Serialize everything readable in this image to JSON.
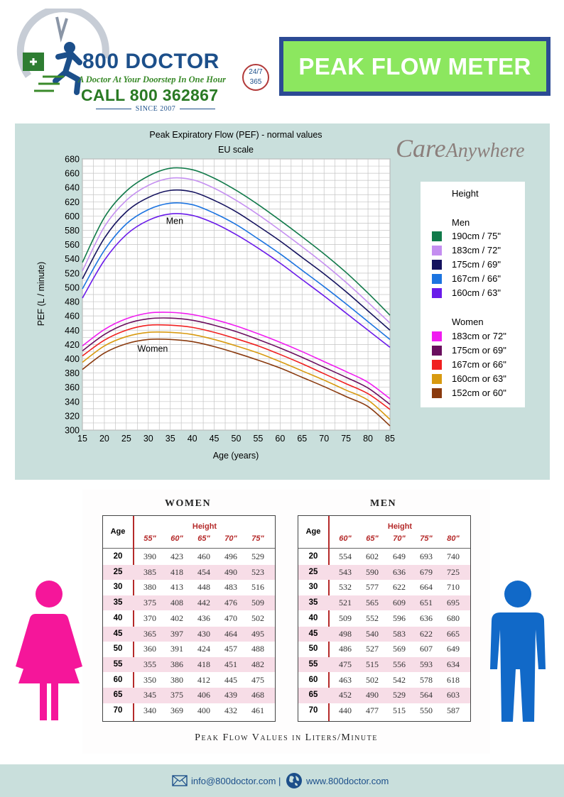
{
  "header": {
    "brand_name": "800 DOCTOR",
    "tagline": "A Doctor At Your Doorstep In One Hour",
    "call": "CALL 800 362867",
    "since": "SINCE 2007",
    "badge_top": "24/7",
    "badge_bottom": "365",
    "page_title": "PEAK FLOW METER"
  },
  "watermark": {
    "care": "Care",
    "anywhere": "Anywhere"
  },
  "chart_data": {
    "type": "line",
    "title": "Peak Expiratory Flow (PEF) - normal values",
    "subtitle": "EU scale",
    "xlabel": "Age (years)",
    "ylabel": "PEF (L / minute)",
    "xlim": [
      15,
      85
    ],
    "ylim": [
      300,
      680
    ],
    "xticks": [
      15,
      20,
      25,
      30,
      35,
      40,
      45,
      50,
      55,
      60,
      65,
      70,
      75,
      80,
      85
    ],
    "yticks": [
      300,
      320,
      340,
      360,
      380,
      400,
      420,
      440,
      460,
      480,
      500,
      520,
      540,
      560,
      580,
      600,
      620,
      640,
      660,
      680
    ],
    "grid": true,
    "legend_position": "right",
    "annotations": [
      {
        "text": "Men",
        "x": 36,
        "y": 593
      },
      {
        "text": "Women",
        "x": 31,
        "y": 414
      }
    ],
    "legend": {
      "title": "Height",
      "groups": [
        {
          "name": "Men",
          "entries": [
            "190cm / 75\"",
            "183cm / 72\"",
            "175cm / 69\"",
            "167cm / 66\"",
            "160cm / 63\""
          ]
        },
        {
          "name": "Women",
          "entries": [
            "183cm or 72\"",
            "175cm or 69\"",
            "167cm or 66\"",
            "160cm or 63\"",
            "152cm or 60\""
          ]
        }
      ]
    },
    "series": [
      {
        "name": "190cm / 75\"",
        "color": "#117a4a",
        "x": [
          15,
          20,
          25,
          30,
          35,
          40,
          45,
          50,
          55,
          60,
          65,
          70,
          75,
          80,
          85
        ],
        "y": [
          535,
          598,
          635,
          656,
          667,
          665,
          653,
          636,
          616,
          594,
          571,
          547,
          521,
          492,
          461
        ]
      },
      {
        "name": "183cm / 72\"",
        "color": "#c48ef0",
        "x": [
          15,
          20,
          25,
          30,
          35,
          40,
          45,
          50,
          55,
          60,
          65,
          70,
          75,
          80,
          85
        ],
        "y": [
          523,
          585,
          622,
          643,
          653,
          651,
          639,
          622,
          602,
          580,
          557,
          533,
          507,
          479,
          450
        ]
      },
      {
        "name": "175cm / 69\"",
        "color": "#14125e",
        "x": [
          15,
          20,
          25,
          30,
          35,
          40,
          45,
          50,
          55,
          60,
          65,
          70,
          75,
          80,
          85
        ],
        "y": [
          512,
          569,
          606,
          626,
          636,
          634,
          622,
          606,
          586,
          565,
          542,
          519,
          494,
          467,
          440
        ]
      },
      {
        "name": "167cm / 66\"",
        "color": "#1c74e0",
        "x": [
          15,
          20,
          25,
          30,
          35,
          40,
          45,
          50,
          55,
          60,
          65,
          70,
          75,
          80,
          85
        ],
        "y": [
          498,
          552,
          589,
          609,
          618,
          616,
          604,
          588,
          568,
          547,
          524,
          501,
          477,
          452,
          427
        ]
      },
      {
        "name": "160cm / 63\"",
        "color": "#6a1bea",
        "x": [
          15,
          20,
          25,
          30,
          35,
          40,
          45,
          50,
          55,
          60,
          65,
          70,
          75,
          80,
          85
        ],
        "y": [
          485,
          538,
          574,
          594,
          603,
          601,
          590,
          574,
          555,
          534,
          511,
          488,
          464,
          440,
          416
        ]
      },
      {
        "name": "183cm or 72\"",
        "color": "#f01cf0",
        "x": [
          15,
          20,
          25,
          30,
          35,
          40,
          45,
          50,
          55,
          60,
          65,
          70,
          75,
          80,
          85
        ],
        "y": [
          418,
          441,
          456,
          464,
          465,
          462,
          455,
          446,
          435,
          423,
          410,
          396,
          382,
          367,
          344
        ]
      },
      {
        "name": "175cm or 69\"",
        "color": "#6a0e5e",
        "x": [
          15,
          20,
          25,
          30,
          35,
          40,
          45,
          50,
          55,
          60,
          65,
          70,
          75,
          80,
          85
        ],
        "y": [
          411,
          434,
          449,
          456,
          457,
          454,
          447,
          438,
          427,
          415,
          402,
          388,
          374,
          359,
          336
        ]
      },
      {
        "name": "167cm or 66\"",
        "color": "#f02020",
        "x": [
          15,
          20,
          25,
          30,
          35,
          40,
          45,
          50,
          55,
          60,
          65,
          70,
          75,
          80,
          85
        ],
        "y": [
          404,
          426,
          440,
          447,
          447,
          444,
          437,
          428,
          418,
          406,
          393,
          379,
          365,
          351,
          329
        ]
      },
      {
        "name": "160cm or 63\"",
        "color": "#d89a10",
        "x": [
          15,
          20,
          25,
          30,
          35,
          40,
          45,
          50,
          55,
          60,
          65,
          70,
          75,
          80,
          85
        ],
        "y": [
          395,
          418,
          431,
          437,
          437,
          434,
          427,
          418,
          408,
          396,
          383,
          370,
          356,
          342,
          315
        ]
      },
      {
        "name": "152cm or 60\"",
        "color": "#8a3a0e",
        "x": [
          15,
          20,
          25,
          30,
          35,
          40,
          45,
          50,
          55,
          60,
          65,
          70,
          75,
          80,
          85
        ],
        "y": [
          385,
          408,
          421,
          427,
          427,
          424,
          417,
          408,
          398,
          387,
          374,
          361,
          347,
          333,
          306
        ]
      }
    ]
  },
  "tables": {
    "women": {
      "title": "WOMEN",
      "age_header": "Age",
      "height_header": "Height",
      "heights": [
        "55\"",
        "60\"",
        "65\"",
        "70\"",
        "75\""
      ],
      "rows": [
        {
          "age": "20",
          "values": [
            "390",
            "423",
            "460",
            "496",
            "529"
          ]
        },
        {
          "age": "25",
          "values": [
            "385",
            "418",
            "454",
            "490",
            "523"
          ]
        },
        {
          "age": "30",
          "values": [
            "380",
            "413",
            "448",
            "483",
            "516"
          ]
        },
        {
          "age": "35",
          "values": [
            "375",
            "408",
            "442",
            "476",
            "509"
          ]
        },
        {
          "age": "40",
          "values": [
            "370",
            "402",
            "436",
            "470",
            "502"
          ]
        },
        {
          "age": "45",
          "values": [
            "365",
            "397",
            "430",
            "464",
            "495"
          ]
        },
        {
          "age": "50",
          "values": [
            "360",
            "391",
            "424",
            "457",
            "488"
          ]
        },
        {
          "age": "55",
          "values": [
            "355",
            "386",
            "418",
            "451",
            "482"
          ]
        },
        {
          "age": "60",
          "values": [
            "350",
            "380",
            "412",
            "445",
            "475"
          ]
        },
        {
          "age": "65",
          "values": [
            "345",
            "375",
            "406",
            "439",
            "468"
          ]
        },
        {
          "age": "70",
          "values": [
            "340",
            "369",
            "400",
            "432",
            "461"
          ]
        }
      ]
    },
    "men": {
      "title": "MEN",
      "age_header": "Age",
      "height_header": "Height",
      "heights": [
        "60\"",
        "65\"",
        "70\"",
        "75\"",
        "80\""
      ],
      "rows": [
        {
          "age": "20",
          "values": [
            "554",
            "602",
            "649",
            "693",
            "740"
          ]
        },
        {
          "age": "25",
          "values": [
            "543",
            "590",
            "636",
            "679",
            "725"
          ]
        },
        {
          "age": "30",
          "values": [
            "532",
            "577",
            "622",
            "664",
            "710"
          ]
        },
        {
          "age": "35",
          "values": [
            "521",
            "565",
            "609",
            "651",
            "695"
          ]
        },
        {
          "age": "40",
          "values": [
            "509",
            "552",
            "596",
            "636",
            "680"
          ]
        },
        {
          "age": "45",
          "values": [
            "498",
            "540",
            "583",
            "622",
            "665"
          ]
        },
        {
          "age": "50",
          "values": [
            "486",
            "527",
            "569",
            "607",
            "649"
          ]
        },
        {
          "age": "55",
          "values": [
            "475",
            "515",
            "556",
            "593",
            "634"
          ]
        },
        {
          "age": "60",
          "values": [
            "463",
            "502",
            "542",
            "578",
            "618"
          ]
        },
        {
          "age": "65",
          "values": [
            "452",
            "490",
            "529",
            "564",
            "603"
          ]
        },
        {
          "age": "70",
          "values": [
            "440",
            "477",
            "515",
            "550",
            "587"
          ]
        }
      ]
    },
    "caption": "Peak Flow Values in Liters/Minute"
  },
  "figures": {
    "woman_color": "#f5169a",
    "man_color": "#1169c8"
  },
  "footer": {
    "email": "info@800doctor.com",
    "separator": "|",
    "website": "www.800doctor.com"
  }
}
